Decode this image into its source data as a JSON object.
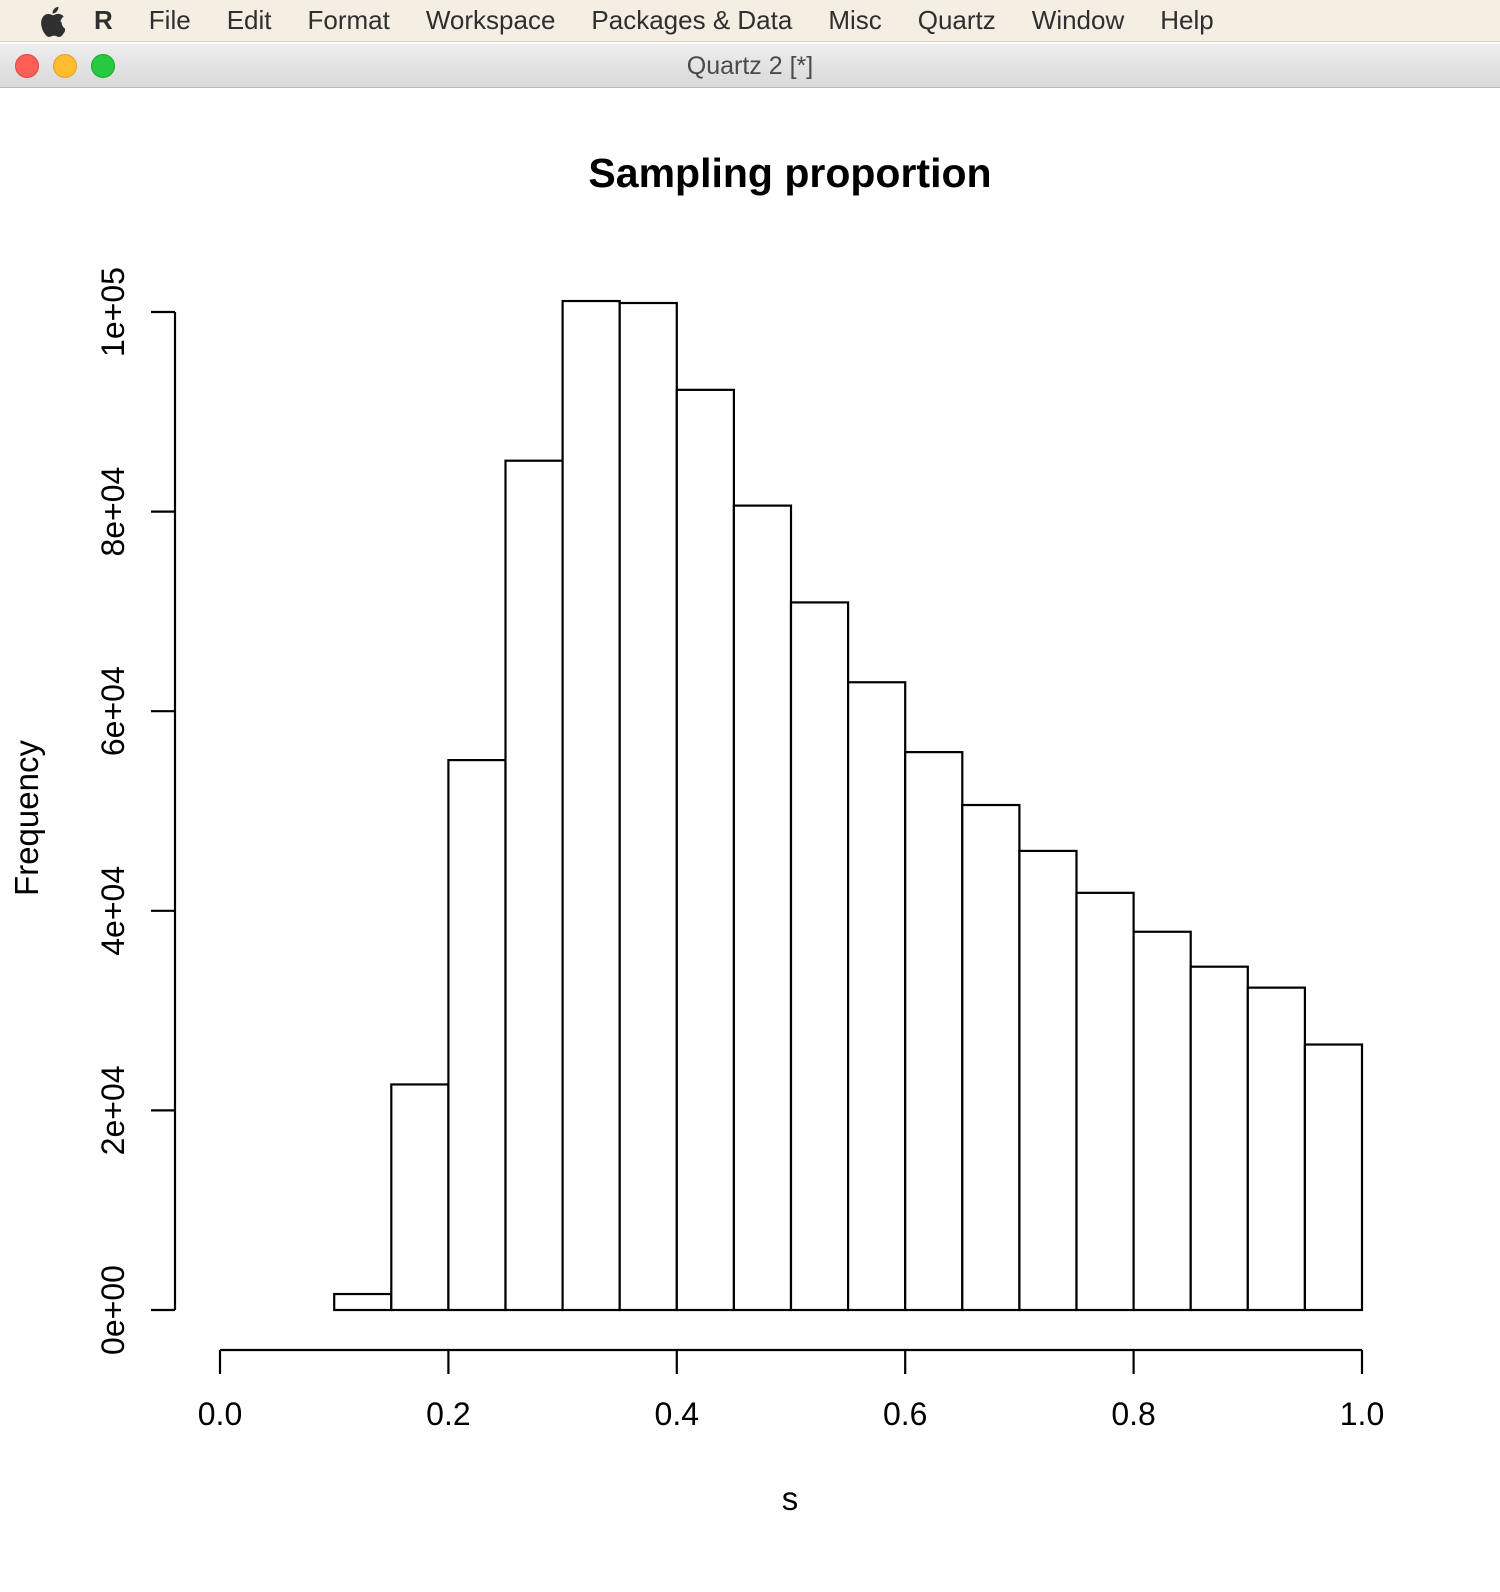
{
  "menubar": {
    "apple_icon": "apple-logo-icon",
    "app_name": "R",
    "items": [
      "File",
      "Edit",
      "Format",
      "Workspace",
      "Packages & Data",
      "Misc",
      "Quartz",
      "Window",
      "Help"
    ]
  },
  "window": {
    "title": "Quartz 2 [*]",
    "close_color": "#fd5f57",
    "minimize_color": "#febc2e",
    "maximize_color": "#28c840"
  },
  "chart_data": {
    "type": "bar",
    "subtype": "histogram",
    "title": "Sampling proportion",
    "xlabel": "s",
    "ylabel": "Frequency",
    "xlim": [
      0,
      1
    ],
    "ylim": [
      0,
      100000
    ],
    "x_ticks": [
      0,
      0.2,
      0.4,
      0.6,
      0.8,
      1
    ],
    "x_tick_labels": [
      "0.0",
      "0.2",
      "0.4",
      "0.6",
      "0.8",
      "1.0"
    ],
    "y_ticks": [
      0,
      20000,
      40000,
      60000,
      80000,
      100000
    ],
    "y_tick_labels": [
      "0e+00",
      "2e+04",
      "4e+04",
      "6e+04",
      "8e+04",
      "1e+05"
    ],
    "bin_width": 0.05,
    "bins": [
      {
        "x0": 0.1,
        "x1": 0.15,
        "count": 1600
      },
      {
        "x0": 0.15,
        "x1": 0.2,
        "count": 22600
      },
      {
        "x0": 0.2,
        "x1": 0.25,
        "count": 55100
      },
      {
        "x0": 0.25,
        "x1": 0.3,
        "count": 85100
      },
      {
        "x0": 0.3,
        "x1": 0.35,
        "count": 101100
      },
      {
        "x0": 0.35,
        "x1": 0.4,
        "count": 100900
      },
      {
        "x0": 0.4,
        "x1": 0.45,
        "count": 92200
      },
      {
        "x0": 0.45,
        "x1": 0.5,
        "count": 80600
      },
      {
        "x0": 0.5,
        "x1": 0.55,
        "count": 70900
      },
      {
        "x0": 0.55,
        "x1": 0.6,
        "count": 62900
      },
      {
        "x0": 0.6,
        "x1": 0.65,
        "count": 55900
      },
      {
        "x0": 0.65,
        "x1": 0.7,
        "count": 50600
      },
      {
        "x0": 0.7,
        "x1": 0.75,
        "count": 46000
      },
      {
        "x0": 0.75,
        "x1": 0.8,
        "count": 41800
      },
      {
        "x0": 0.8,
        "x1": 0.85,
        "count": 37900
      },
      {
        "x0": 0.85,
        "x1": 0.9,
        "count": 34400
      },
      {
        "x0": 0.9,
        "x1": 0.95,
        "count": 32300
      },
      {
        "x0": 0.95,
        "x1": 1.0,
        "count": 26600
      }
    ],
    "fill_color": "#ffffff",
    "stroke_color": "#000000",
    "grid": false,
    "legend": "none"
  }
}
